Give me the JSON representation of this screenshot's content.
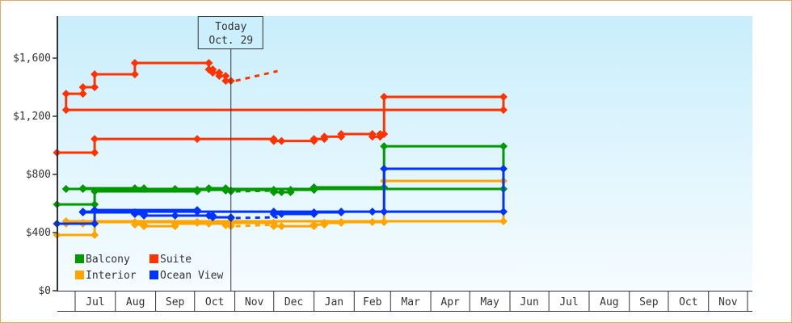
{
  "chart_data": {
    "type": "line",
    "step": true,
    "title": "",
    "xlabel": "",
    "ylabel": "",
    "ylim": [
      0,
      1850
    ],
    "y_ticks": [
      0,
      400,
      800,
      1200,
      1600
    ],
    "y_tick_labels": [
      "$0",
      "$400",
      "$800",
      "$1,200",
      "$1,600"
    ],
    "x_range": [
      "Jun 17",
      "Dec 4"
    ],
    "x_tick_labels": [
      "Jul",
      "Aug",
      "Sep",
      "Oct",
      "Nov",
      "Dec",
      "Jan",
      "Feb",
      "Mar",
      "Apr",
      "May",
      "Jun",
      "Jul",
      "Aug",
      "Sep",
      "Oct",
      "Nov"
    ],
    "grid": false,
    "legend_position": "bottom-left",
    "today": {
      "title": "Today",
      "date": "Oct. 29",
      "x": "Oct 29"
    },
    "series": [
      {
        "name": "Balcony",
        "color": "#009900",
        "points": [
          [
            "Jun 17",
            594
          ],
          [
            "Jul 16",
            683
          ],
          [
            "Oct 3",
            694
          ],
          [
            "Dec 1",
            678
          ],
          [
            "Dec 7",
            678
          ],
          [
            "Dec 14",
            694
          ],
          [
            "Jan 1",
            711
          ],
          [
            "Feb 24",
            994
          ],
          [
            "May 27",
            700
          ],
          [
            "Jun 24",
            700
          ],
          [
            "Jul 7",
            705
          ],
          [
            "Aug 16",
            705
          ],
          [
            "Aug 23",
            700
          ],
          [
            "Sep 16",
            700
          ],
          [
            "Oct 12",
            705
          ],
          [
            "Oct 25",
            689
          ],
          [
            "Oct 29",
            683
          ]
        ],
        "forecast": [
          [
            "Oct 29",
            683
          ],
          [
            "Dec 4",
            689
          ]
        ]
      },
      {
        "name": "Suite",
        "color": "#ff3300",
        "points": [
          [
            "Jun 17",
            950
          ],
          [
            "Jul 16",
            1044
          ],
          [
            "Oct 3",
            1044
          ],
          [
            "Dec 1",
            1030
          ],
          [
            "Dec 7",
            1030
          ],
          [
            "Jan 1",
            1044
          ],
          [
            "Jan 9",
            1060
          ],
          [
            "Jan 22",
            1078
          ],
          [
            "Feb 15",
            1060
          ],
          [
            "Feb 21",
            1078
          ],
          [
            "Feb 24",
            1333
          ],
          [
            "May 27",
            1244
          ],
          [
            "Jun 24",
            1355
          ],
          [
            "Jul 7",
            1400
          ],
          [
            "Jul 16",
            1489
          ],
          [
            "Aug 16",
            1567
          ],
          [
            "Oct 12",
            1522
          ],
          [
            "Oct 15",
            1500
          ],
          [
            "Oct 20",
            1478
          ],
          [
            "Oct 25",
            1444
          ],
          [
            "Oct 29",
            1444
          ]
        ],
        "forecast": [
          [
            "Oct 29",
            1444
          ],
          [
            "Dec 4",
            1511
          ]
        ]
      },
      {
        "name": "Interior",
        "color": "#ffa500",
        "points": [
          [
            "Jun 17",
            383
          ],
          [
            "Jul 16",
            472
          ],
          [
            "Oct 3",
            467
          ],
          [
            "Dec 1",
            444
          ],
          [
            "Dec 7",
            444
          ],
          [
            "Jan 1",
            455
          ],
          [
            "Jan 9",
            467
          ],
          [
            "Jan 22",
            472
          ],
          [
            "Feb 15",
            472
          ],
          [
            "Feb 24",
            755
          ],
          [
            "May 27",
            478
          ],
          [
            "Jun 24",
            461
          ],
          [
            "Jul 7",
            467
          ],
          [
            "Jul 16",
            472
          ],
          [
            "Aug 16",
            455
          ],
          [
            "Aug 23",
            444
          ],
          [
            "Sep 16",
            461
          ],
          [
            "Oct 12",
            461
          ],
          [
            "Oct 25",
            450
          ],
          [
            "Oct 29",
            444
          ]
        ],
        "forecast": [
          [
            "Oct 29",
            444
          ],
          [
            "Dec 4",
            455
          ]
        ]
      },
      {
        "name": "Ocean View",
        "color": "#0033ff",
        "points": [
          [
            "Jun 17",
            461
          ],
          [
            "Jul 16",
            555
          ],
          [
            "Oct 3",
            544
          ],
          [
            "Dec 1",
            528
          ],
          [
            "Dec 7",
            528
          ],
          [
            "Jan 1",
            539
          ],
          [
            "Jan 22",
            544
          ],
          [
            "Feb 15",
            544
          ],
          [
            "Feb 24",
            839
          ],
          [
            "May 27",
            544
          ],
          [
            "Jul 7",
            539
          ],
          [
            "Aug 16",
            528
          ],
          [
            "Aug 23",
            517
          ],
          [
            "Sep 16",
            517
          ],
          [
            "Oct 12",
            517
          ],
          [
            "Oct 15",
            505
          ],
          [
            "Oct 29",
            500
          ]
        ],
        "forecast": [
          [
            "Oct 29",
            500
          ],
          [
            "Dec 4",
            505
          ]
        ]
      }
    ]
  }
}
